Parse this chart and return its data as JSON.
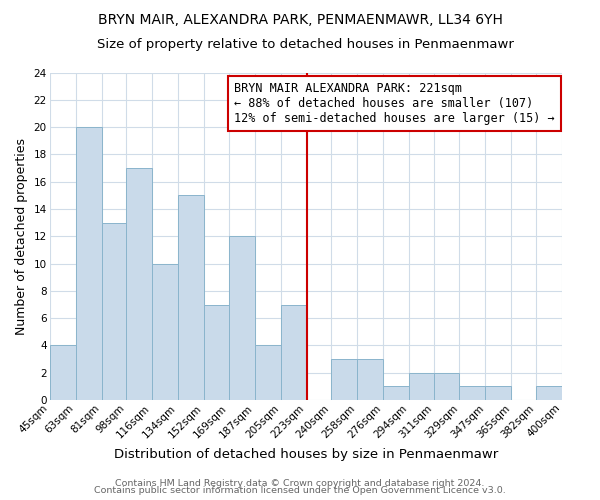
{
  "title": "BRYN MAIR, ALEXANDRA PARK, PENMAENMAWR, LL34 6YH",
  "subtitle": "Size of property relative to detached houses in Penmaenmawr",
  "xlabel": "Distribution of detached houses by size in Penmaenmawr",
  "ylabel": "Number of detached properties",
  "bar_edges": [
    45,
    63,
    81,
    98,
    116,
    134,
    152,
    169,
    187,
    205,
    223,
    240,
    258,
    276,
    294,
    311,
    329,
    347,
    365,
    382,
    400
  ],
  "bar_heights": [
    4,
    20,
    13,
    17,
    10,
    15,
    7,
    12,
    4,
    7,
    0,
    3,
    3,
    1,
    2,
    2,
    1,
    1,
    0,
    1
  ],
  "bar_color": "#c9daea",
  "bar_edgecolor": "#8ab4cc",
  "vline_x": 223,
  "vline_color": "#cc0000",
  "annotation_lines": [
    "BRYN MAIR ALEXANDRA PARK: 221sqm",
    "← 88% of detached houses are smaller (107)",
    "12% of semi-detached houses are larger (15) →"
  ],
  "xlim": [
    45,
    400
  ],
  "ylim": [
    0,
    24
  ],
  "yticks": [
    0,
    2,
    4,
    6,
    8,
    10,
    12,
    14,
    16,
    18,
    20,
    22,
    24
  ],
  "tick_labels": [
    "45sqm",
    "63sqm",
    "81sqm",
    "98sqm",
    "116sqm",
    "134sqm",
    "152sqm",
    "169sqm",
    "187sqm",
    "205sqm",
    "223sqm",
    "240sqm",
    "258sqm",
    "276sqm",
    "294sqm",
    "311sqm",
    "329sqm",
    "347sqm",
    "365sqm",
    "382sqm",
    "400sqm"
  ],
  "footer1": "Contains HM Land Registry data © Crown copyright and database right 2024.",
  "footer2": "Contains public sector information licensed under the Open Government Licence v3.0.",
  "background_color": "#ffffff",
  "plot_bg_color": "#ffffff",
  "grid_color": "#d0dce8",
  "title_fontsize": 10,
  "subtitle_fontsize": 9.5,
  "tick_fontsize": 7.5,
  "ylabel_fontsize": 9,
  "xlabel_fontsize": 9.5,
  "footer_fontsize": 6.8,
  "annot_fontsize": 8.5
}
